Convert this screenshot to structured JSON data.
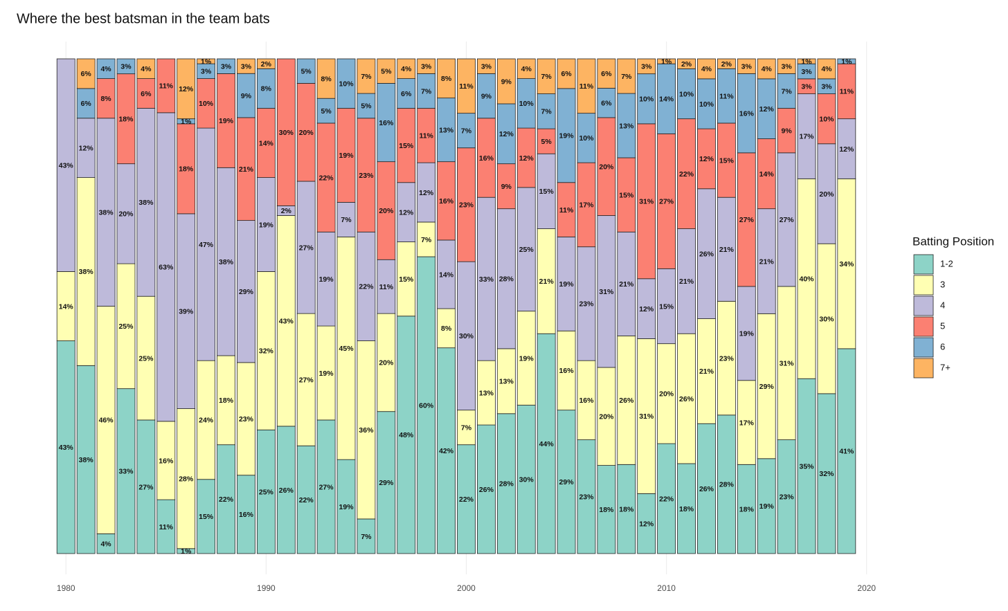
{
  "chart_data": {
    "type": "stacked_bar",
    "title": "Where the best batsman in the team bats",
    "legend_title": "Batting Position",
    "legend_position": "right",
    "x": [
      1980,
      1981,
      1982,
      1983,
      1984,
      1985,
      1986,
      1987,
      1988,
      1989,
      1990,
      1991,
      1992,
      1993,
      1994,
      1995,
      1996,
      1997,
      1998,
      1999,
      2000,
      2001,
      2002,
      2003,
      2004,
      2005,
      2006,
      2007,
      2008,
      2009,
      2010,
      2011,
      2012,
      2013,
      2014,
      2015,
      2016,
      2017,
      2018,
      2019
    ],
    "xlim": [
      1978.85,
      2021.15
    ],
    "xticks": [
      1980,
      1990,
      2000,
      2010,
      2020
    ],
    "grid": true,
    "series": [
      {
        "name": "1-2",
        "color": "#8dd3c7",
        "values": [
          43,
          38,
          4,
          33,
          27,
          11,
          1,
          15,
          22,
          16,
          25,
          26,
          22,
          27,
          19,
          7,
          29,
          48,
          60,
          42,
          22,
          26,
          28,
          30,
          44,
          29,
          23,
          18,
          18,
          12,
          22,
          18,
          26,
          28,
          18,
          19,
          23,
          35,
          32,
          41
        ],
        "value_labels": [
          "43%",
          "38%",
          "4%",
          "33%",
          "27%",
          "11%",
          "1%",
          "15%",
          "22%",
          "16%",
          "25%",
          "26%",
          "22%",
          "27%",
          "19%",
          "7%",
          "29%",
          "48%",
          "60%",
          "42%",
          "22%",
          "26%",
          "28%",
          "30%",
          "44%",
          "29%",
          "23%",
          "18%",
          "18%",
          "12%",
          "22%",
          "18%",
          "26%",
          "28%",
          "18%",
          "19%",
          "23%",
          "35%",
          "32%",
          "41%"
        ]
      },
      {
        "name": "3",
        "color": "#ffffb3",
        "values": [
          14,
          38,
          46,
          25,
          25,
          16,
          28,
          24,
          18,
          23,
          32,
          43,
          27,
          19,
          45,
          36,
          20,
          15,
          7,
          8,
          7,
          13,
          13,
          19,
          21,
          16,
          16,
          20,
          26,
          31,
          20,
          26,
          21,
          23,
          17,
          29,
          31,
          40,
          30,
          34
        ],
        "value_labels": [
          "14%",
          "38%",
          "46%",
          "25%",
          "25%",
          "16%",
          "28%",
          "24%",
          "18%",
          "23%",
          "32%",
          "43%",
          "27%",
          "19%",
          "45%",
          "36%",
          "20%",
          "15%",
          "7%",
          "8%",
          "7%",
          "13%",
          "13%",
          "19%",
          "21%",
          "16%",
          "16%",
          "20%",
          "26%",
          "31%",
          "20%",
          "26%",
          "21%",
          "23%",
          "17%",
          "29%",
          "31%",
          "40%",
          "30%",
          "34%"
        ]
      },
      {
        "name": "4",
        "color": "#bebada",
        "values": [
          43,
          12,
          38,
          20,
          38,
          63,
          39,
          47,
          38,
          29,
          19,
          2,
          27,
          19,
          7,
          22,
          11,
          12,
          12,
          14,
          30,
          33,
          28,
          25,
          15,
          19,
          23,
          31,
          21,
          12,
          15,
          21,
          26,
          21,
          19,
          21,
          27,
          17,
          20,
          12
        ],
        "value_labels": [
          "43%",
          "12%",
          "38%",
          "20%",
          "38%",
          "63%",
          "39%",
          "47%",
          "38%",
          "29%",
          "19%",
          "2%",
          "27%",
          "19%",
          "7%",
          "22%",
          "11%",
          "12%",
          "12%",
          "14%",
          "30%",
          "33%",
          "28%",
          "25%",
          "15%",
          "19%",
          "23%",
          "31%",
          "21%",
          "12%",
          "15%",
          "21%",
          "26%",
          "21%",
          "19%",
          "21%",
          "27%",
          "17%",
          "20%",
          "12%"
        ]
      },
      {
        "name": "5",
        "color": "#fb8072",
        "values": [
          0,
          0,
          8,
          18,
          6,
          11,
          18,
          10,
          19,
          21,
          14,
          30,
          20,
          22,
          19,
          23,
          20,
          15,
          11,
          16,
          23,
          16,
          9,
          12,
          5,
          11,
          17,
          20,
          15,
          31,
          27,
          22,
          12,
          15,
          27,
          14,
          9,
          3,
          10,
          11
        ],
        "value_labels": [
          null,
          null,
          "8%",
          "18%",
          "6%",
          "11%",
          "18%",
          "10%",
          "19%",
          "21%",
          "14%",
          "30%",
          "20%",
          "22%",
          "19%",
          "23%",
          "20%",
          "15%",
          "11%",
          "16%",
          "23%",
          "16%",
          "9%",
          "12%",
          "5%",
          "11%",
          "17%",
          "20%",
          "15%",
          "31%",
          "27%",
          "22%",
          "12%",
          "15%",
          "27%",
          "14%",
          "9%",
          "3%",
          "10%",
          "11%"
        ]
      },
      {
        "name": "6",
        "color": "#80b1d3",
        "values": [
          0,
          6,
          4,
          3,
          0,
          0,
          1,
          3,
          3,
          9,
          8,
          0,
          5,
          5,
          10,
          5,
          16,
          6,
          7,
          13,
          7,
          9,
          12,
          10,
          7,
          19,
          10,
          6,
          13,
          10,
          14,
          10,
          10,
          11,
          16,
          12,
          7,
          3,
          3,
          1
        ],
        "value_labels": [
          null,
          "6%",
          "4%",
          "3%",
          null,
          null,
          "1%",
          "3%",
          "3%",
          "9%",
          "8%",
          null,
          "5%",
          "5%",
          "10%",
          "5%",
          "16%",
          "6%",
          "7%",
          "13%",
          "7%",
          "9%",
          "12%",
          "10%",
          "7%",
          "19%",
          "10%",
          "6%",
          "13%",
          "10%",
          "14%",
          "10%",
          "10%",
          "11%",
          "16%",
          "12%",
          "7%",
          "3%",
          "3%",
          "1%"
        ]
      },
      {
        "name": "7+",
        "color": "#fdb462",
        "values": [
          0,
          6,
          0,
          0,
          4,
          0,
          12,
          1,
          0,
          3,
          2,
          0,
          0,
          8,
          0,
          7,
          5,
          4,
          3,
          8,
          11,
          3,
          9,
          4,
          7,
          6,
          11,
          6,
          7,
          3,
          1,
          2,
          4,
          2,
          3,
          4,
          3,
          1,
          4,
          0
        ],
        "value_labels": [
          null,
          "6%",
          null,
          null,
          "4%",
          null,
          "12%",
          "1%",
          null,
          "3%",
          "2%",
          null,
          null,
          "8%",
          null,
          "7%",
          "5%",
          "4%",
          "3%",
          "8%",
          "11%",
          "3%",
          "9%",
          "4%",
          "7%",
          "6%",
          "11%",
          "6%",
          "7%",
          "3%",
          "1%",
          "2%",
          "4%",
          "2%",
          "3%",
          "4%",
          "3%",
          "1%",
          "4%",
          null
        ]
      }
    ]
  }
}
